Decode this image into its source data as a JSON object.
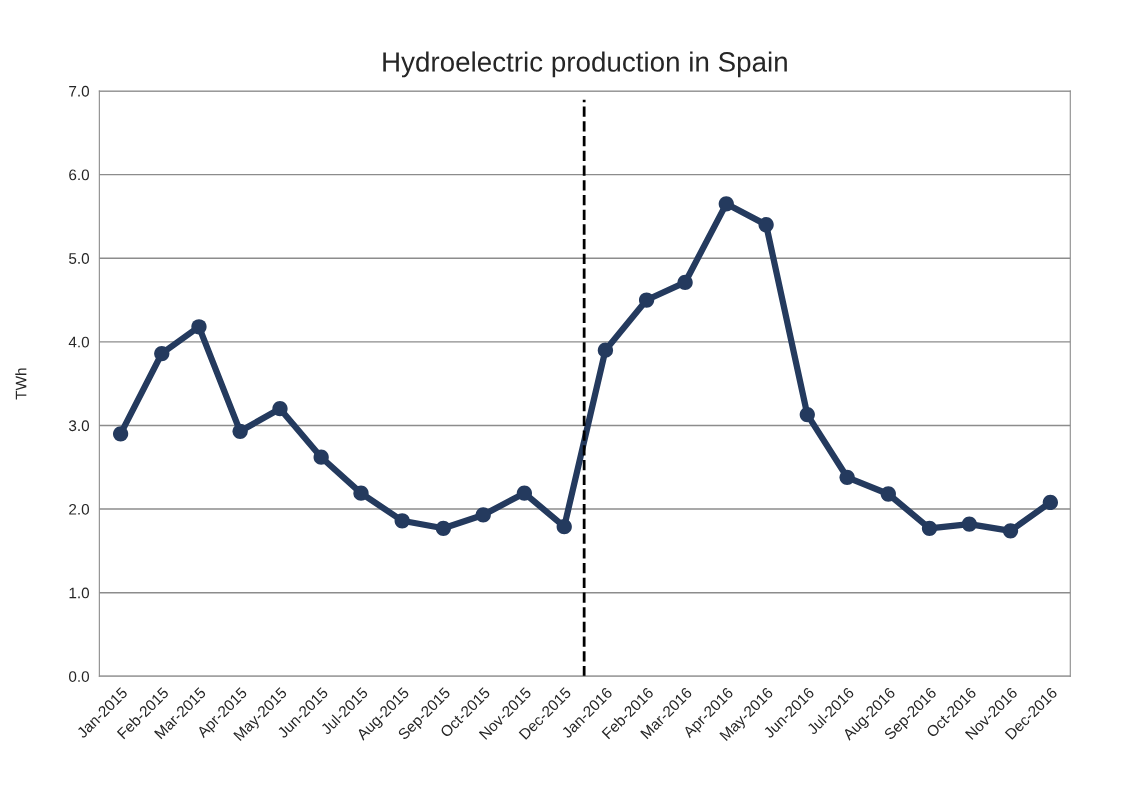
{
  "chart_data": {
    "type": "line",
    "title": "Hydroelectric production in Spain",
    "ylabel": "TWh",
    "x": [
      "2015-01",
      "2015-02",
      "2015-03",
      "2015-04",
      "2015-05",
      "2015-06",
      "2015-07",
      "2015-08",
      "2015-09",
      "2015-10",
      "2015-11",
      "2015-12",
      "2016-01",
      "2016-02",
      "2016-03",
      "2016-04",
      "2016-05",
      "2016-06",
      "2016-07",
      "2016-08",
      "2016-09",
      "2016-10",
      "2016-11",
      "2016-12"
    ],
    "xlim": [
      "2014-12-16",
      "2016-12-16"
    ],
    "xticks": [
      {
        "value": "2015-01",
        "label": "Jan-2015"
      },
      {
        "value": "2015-02",
        "label": "Feb-2015"
      },
      {
        "value": "2015-03",
        "label": "Mar-2015"
      },
      {
        "value": "2015-04",
        "label": "Apr-2015"
      },
      {
        "value": "2015-05",
        "label": "May-2015"
      },
      {
        "value": "2015-06",
        "label": "Jun-2015"
      },
      {
        "value": "2015-07",
        "label": "Jul-2015"
      },
      {
        "value": "2015-08",
        "label": "Aug-2015"
      },
      {
        "value": "2015-09",
        "label": "Sep-2015"
      },
      {
        "value": "2015-10",
        "label": "Oct-2015"
      },
      {
        "value": "2015-11",
        "label": "Nov-2015"
      },
      {
        "value": "2015-12",
        "label": "Dec-2015"
      },
      {
        "value": "2016-01",
        "label": "Jan-2016"
      },
      {
        "value": "2016-02",
        "label": "Feb-2016"
      },
      {
        "value": "2016-03",
        "label": "Mar-2016"
      },
      {
        "value": "2016-04",
        "label": "Apr-2016"
      },
      {
        "value": "2016-05",
        "label": "May-2016"
      },
      {
        "value": "2016-06",
        "label": "Jun-2016"
      },
      {
        "value": "2016-07",
        "label": "Jul-2016"
      },
      {
        "value": "2016-08",
        "label": "Aug-2016"
      },
      {
        "value": "2016-09",
        "label": "Sep-2016"
      },
      {
        "value": "2016-10",
        "label": "Oct-2016"
      },
      {
        "value": "2016-11",
        "label": "Nov-2016"
      },
      {
        "value": "2016-12",
        "label": "Dec-2016"
      }
    ],
    "series": [
      {
        "color": "#243a5e",
        "values": [
          2.9,
          3.86,
          4.18,
          2.93,
          3.2,
          2.62,
          2.19,
          1.86,
          1.77,
          1.93,
          2.19,
          1.79,
          3.9,
          4.5,
          4.71,
          5.65,
          5.4,
          3.13,
          2.38,
          2.18,
          1.77,
          1.82,
          1.74,
          2.08
        ]
      }
    ],
    "ylim": [
      0,
      7
    ],
    "yticks": [
      {
        "value": 0,
        "label": "0.0"
      },
      {
        "value": 1,
        "label": "1.0"
      },
      {
        "value": 2,
        "label": "2.0"
      },
      {
        "value": 3,
        "label": "3.0"
      },
      {
        "value": 4,
        "label": "4.0"
      },
      {
        "value": 5,
        "label": "5.0"
      },
      {
        "value": 6,
        "label": "6.0"
      },
      {
        "value": 7,
        "label": "7.0"
      }
    ],
    "ref_lines": [
      {
        "axis": "x",
        "value": "2015-12-16",
        "color": "#000000",
        "line_style": "dashed"
      }
    ],
    "grid": "y",
    "marker": "circle",
    "line_style": "solid"
  }
}
